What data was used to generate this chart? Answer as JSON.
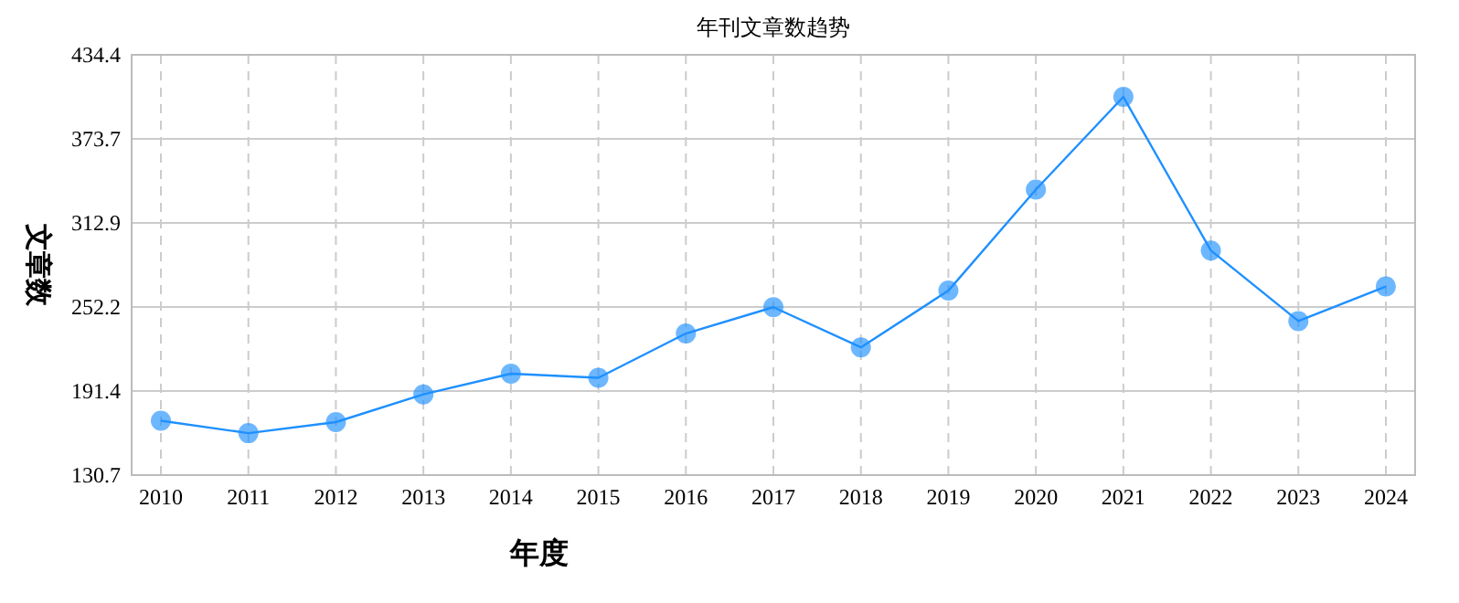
{
  "chart_data": {
    "type": "line",
    "title": "年刊文章数趋势",
    "xlabel": "年度",
    "ylabel": "文章数",
    "categories": [
      "2010",
      "2011",
      "2012",
      "2013",
      "2014",
      "2015",
      "2016",
      "2017",
      "2018",
      "2019",
      "2020",
      "2021",
      "2022",
      "2023",
      "2024"
    ],
    "series": [
      {
        "color": "#1e90ff",
        "values": [
          170,
          161,
          169,
          189,
          204,
          201,
          233,
          252,
          223,
          264,
          337,
          404,
          293,
          242,
          267
        ]
      }
    ],
    "ylim": [
      130.7,
      434.4
    ],
    "yticks": [
      130.7,
      191.4,
      252.2,
      312.9,
      373.7,
      434.4
    ],
    "grid": true,
    "marker": "circle",
    "line_style": "solid"
  }
}
